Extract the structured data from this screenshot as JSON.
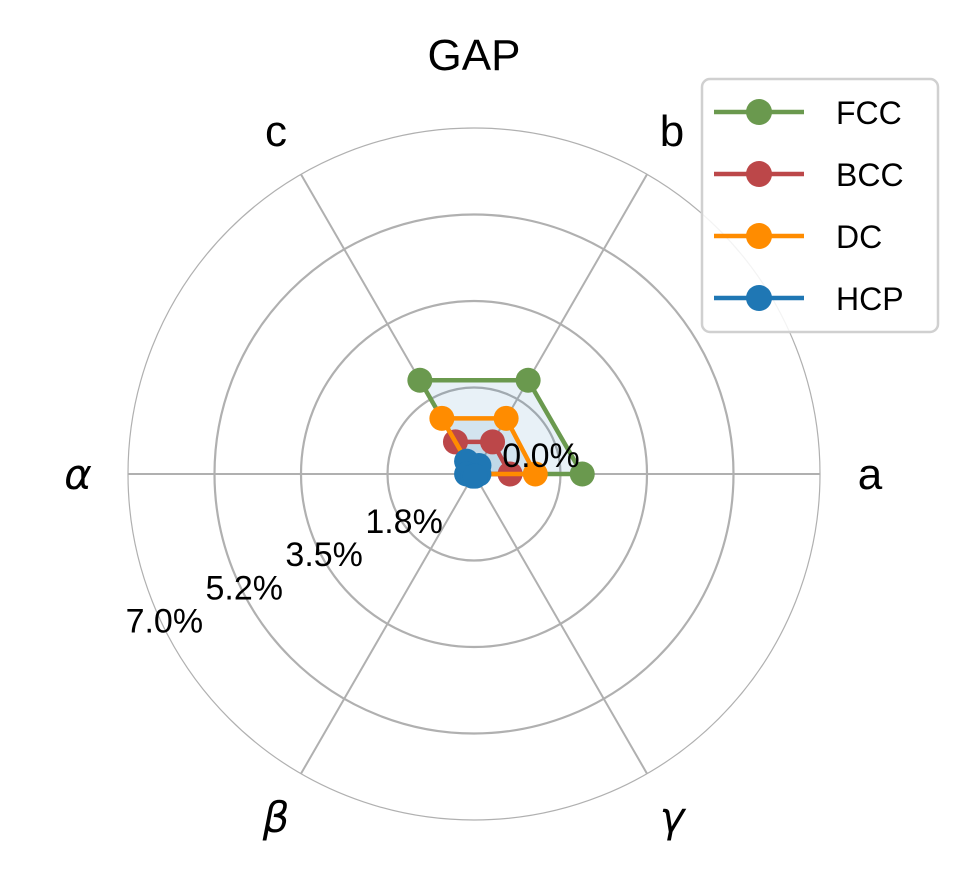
{
  "chart_data": {
    "type": "radar",
    "title": "GAP",
    "axes": [
      "a",
      "b",
      "c",
      "α",
      "β",
      "γ"
    ],
    "axis_angles_deg": [
      0,
      60,
      120,
      180,
      240,
      300
    ],
    "radial_ticks": [
      1.75,
      3.5,
      5.25,
      7.0
    ],
    "radial_tick_labels": [
      "1.8%",
      "3.5%",
      "5.2%",
      "7.0%"
    ],
    "center_label": "0.0%",
    "rlim": [
      0,
      7.0
    ],
    "grid": true,
    "legend_position": "upper right",
    "series": [
      {
        "name": "FCC",
        "color": "#6a994e",
        "values": [
          2.19,
          2.19,
          2.19,
          0.0,
          0.0,
          0.0
        ]
      },
      {
        "name": "BCC",
        "color": "#bc4749",
        "values": [
          0.73,
          0.75,
          0.75,
          0.0,
          0.0,
          0.0
        ]
      },
      {
        "name": "DC",
        "color": "#ff8c00",
        "values": [
          1.24,
          1.3,
          1.3,
          0.0,
          0.0,
          0.0
        ]
      },
      {
        "name": "HCP",
        "color": "#1f77b4",
        "values": [
          0.1,
          0.2,
          0.3,
          0.15,
          0.05,
          0.05
        ]
      }
    ]
  }
}
